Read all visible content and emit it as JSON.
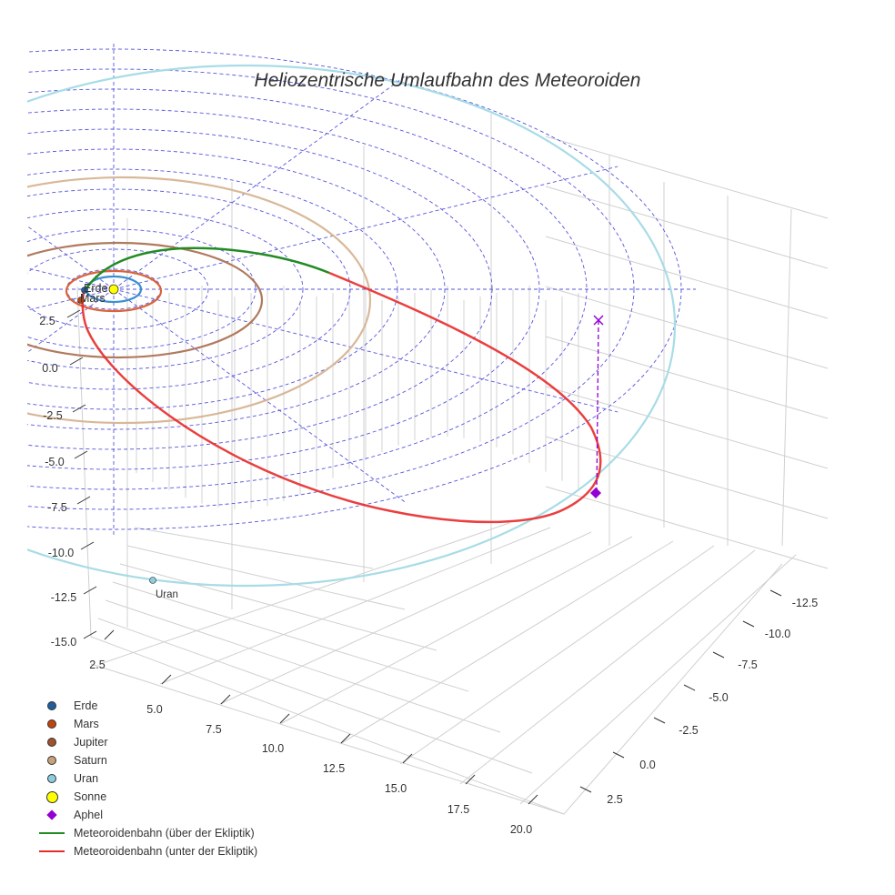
{
  "chart_data": {
    "type": "line3d",
    "title": "Heliozentrische Umlaufbahn des Meteoroiden",
    "axes": {
      "x": {
        "ticks": [
          "2.5",
          "5.0",
          "7.5",
          "10.0",
          "12.5",
          "15.0",
          "17.5",
          "20.0"
        ],
        "range": [
          1.5,
          21
        ]
      },
      "y": {
        "ticks": [
          "-12.5",
          "-10.0",
          "-7.5",
          "-5.0",
          "-2.5",
          "0.0",
          "2.5"
        ],
        "range": [
          -14,
          3.5
        ]
      },
      "z": {
        "ticks": [
          "2.5",
          "0.0",
          "-2.5",
          "-5.0",
          "-7.5",
          "-10.0",
          "-12.5",
          "-15.0"
        ],
        "range": [
          -16,
          4
        ]
      }
    },
    "grid": true,
    "legend_position": "bottom-left",
    "legend": [
      {
        "label": "Erde",
        "kind": "dot",
        "color": "#1f5f9e"
      },
      {
        "label": "Mars",
        "kind": "dot",
        "color": "#c1440e"
      },
      {
        "label": "Jupiter",
        "kind": "dot",
        "color": "#a0522d"
      },
      {
        "label": "Saturn",
        "kind": "dot",
        "color": "#c8a07a"
      },
      {
        "label": "Uran",
        "kind": "dot",
        "color": "#8ccde0"
      },
      {
        "label": "Sonne",
        "kind": "bigdot",
        "color": "#ffff00"
      },
      {
        "label": "Aphel",
        "kind": "diamond",
        "color": "#9400d3"
      },
      {
        "label": "Meteoroidenbahn (über der Ekliptik)",
        "kind": "line",
        "color": "#228b22"
      },
      {
        "label": "Meteoroidenbahn (unter der Ekliptik)",
        "kind": "line",
        "color": "#e82a2a"
      }
    ],
    "point_labels": {
      "earth": "Erde",
      "mars": "Mars",
      "uranus": "Uran"
    },
    "orbits": [
      {
        "name": "Erde",
        "color": "#3a8fd0",
        "a_au": 1.0
      },
      {
        "name": "Mars",
        "color": "#d9643a",
        "a_au": 1.52
      },
      {
        "name": "Jupiter",
        "color": "#b07a5e",
        "a_au": 5.2
      },
      {
        "name": "Saturn",
        "color": "#d8b898",
        "a_au": 9.5
      },
      {
        "name": "Uran",
        "color": "#a8dce6",
        "a_au": 19.2
      }
    ]
  }
}
